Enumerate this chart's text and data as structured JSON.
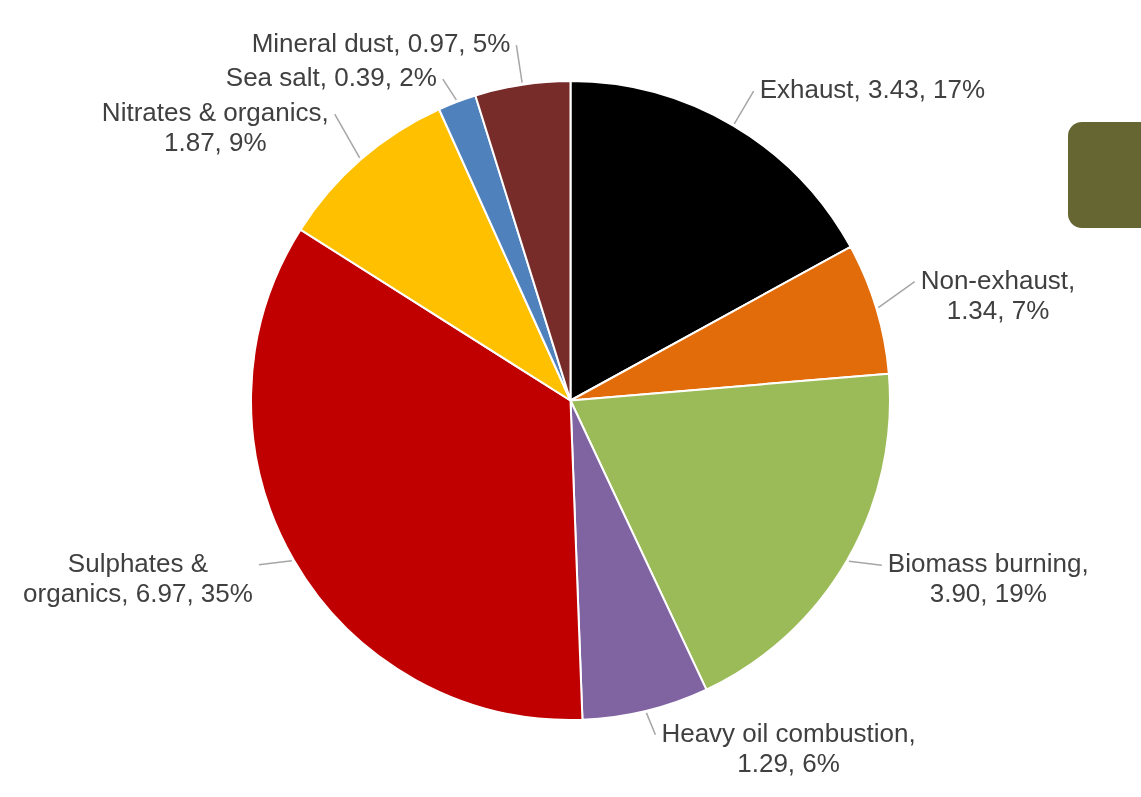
{
  "chart_data": {
    "type": "pie",
    "categories": [
      "Exhaust",
      "Non-exhaust",
      "Biomass burning",
      "Heavy oil combustion",
      "Sulphates & organics",
      "Nitrates & organics",
      "Sea salt",
      "Mineral dust"
    ],
    "values": [
      3.43,
      1.34,
      3.9,
      1.29,
      6.97,
      1.87,
      0.39,
      0.97
    ],
    "value_labels": [
      ", 3.43, 17%",
      ", 1.34, 7%",
      ", 3.90, 19%",
      ", 1.29, 6%",
      ", 6.97, 35%",
      ", 1.87, 9%",
      ", 0.39, 2%",
      ", 0.97, 5%"
    ],
    "colors": [
      "#000000",
      "#e36c0a",
      "#9bbb59",
      "#8064a2",
      "#c00000",
      "#ffc000",
      "#4f81bd",
      "#772c2a"
    ],
    "legend": false
  }
}
